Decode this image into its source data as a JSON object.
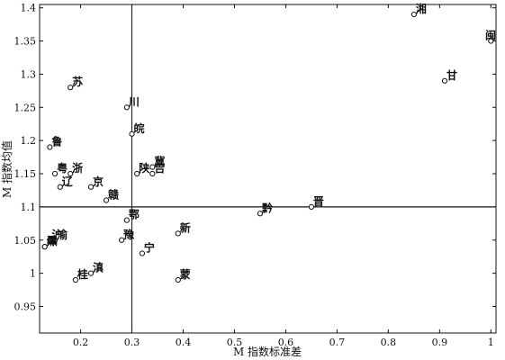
{
  "chart_data": {
    "type": "scatter",
    "xlabel": "M 指数标准差",
    "ylabel": "M 指数均值",
    "xlim": [
      0.12,
      1.01
    ],
    "ylim": [
      0.91,
      1.405
    ],
    "xticks": [
      0.2,
      0.3,
      0.4,
      0.5,
      0.6,
      0.7,
      0.8,
      0.9,
      1.0
    ],
    "xtick_labels": [
      "0.2",
      "0.3",
      "0.4",
      "0.5",
      "0.6",
      "0.7",
      "0.8",
      "0.9",
      "1"
    ],
    "yticks": [
      0.95,
      1.0,
      1.05,
      1.1,
      1.15,
      1.2,
      1.25,
      1.3,
      1.35,
      1.4
    ],
    "ytick_labels": [
      "0.95",
      "1",
      "1.05",
      "1.1",
      "1.15",
      "1.2",
      "1.25",
      "1.3",
      "1.35",
      "1.4"
    ],
    "reference_lines": {
      "x": 0.3,
      "y": 1.1
    },
    "grid": false,
    "points": [
      {
        "label": "湘",
        "x": 0.85,
        "y": 1.39
      },
      {
        "label": "闽",
        "x": 1.0,
        "y": 1.35
      },
      {
        "label": "甘",
        "x": 0.91,
        "y": 1.29
      },
      {
        "label": "苏",
        "x": 0.18,
        "y": 1.28
      },
      {
        "label": "川",
        "x": 0.29,
        "y": 1.25
      },
      {
        "label": "皖",
        "x": 0.3,
        "y": 1.21
      },
      {
        "label": "鲁",
        "x": 0.14,
        "y": 1.19
      },
      {
        "label": "冀",
        "x": 0.34,
        "y": 1.16
      },
      {
        "label": "粤",
        "x": 0.15,
        "y": 1.15
      },
      {
        "label": "浙",
        "x": 0.18,
        "y": 1.15
      },
      {
        "label": "陕",
        "x": 0.31,
        "y": 1.15
      },
      {
        "label": "吉",
        "x": 0.34,
        "y": 1.15
      },
      {
        "label": "辽",
        "x": 0.16,
        "y": 1.13
      },
      {
        "label": "京",
        "x": 0.22,
        "y": 1.13
      },
      {
        "label": "赣",
        "x": 0.25,
        "y": 1.11
      },
      {
        "label": "晋",
        "x": 0.65,
        "y": 1.1
      },
      {
        "label": "黔",
        "x": 0.55,
        "y": 1.09
      },
      {
        "label": "鄂",
        "x": 0.29,
        "y": 1.08
      },
      {
        "label": "新",
        "x": 0.39,
        "y": 1.06
      },
      {
        "label": "渝",
        "x": 0.15,
        "y": 1.05
      },
      {
        "label": "沪",
        "x": 0.14,
        "y": 1.05
      },
      {
        "label": "豫",
        "x": 0.28,
        "y": 1.05
      },
      {
        "label": "津",
        "x": 0.13,
        "y": 1.04
      },
      {
        "label": "黑",
        "x": 0.13,
        "y": 1.04
      },
      {
        "label": "宁",
        "x": 0.32,
        "y": 1.03
      },
      {
        "label": "滇",
        "x": 0.22,
        "y": 1.0
      },
      {
        "label": "桂",
        "x": 0.19,
        "y": 0.99
      },
      {
        "label": "蒙",
        "x": 0.39,
        "y": 0.99
      }
    ]
  }
}
